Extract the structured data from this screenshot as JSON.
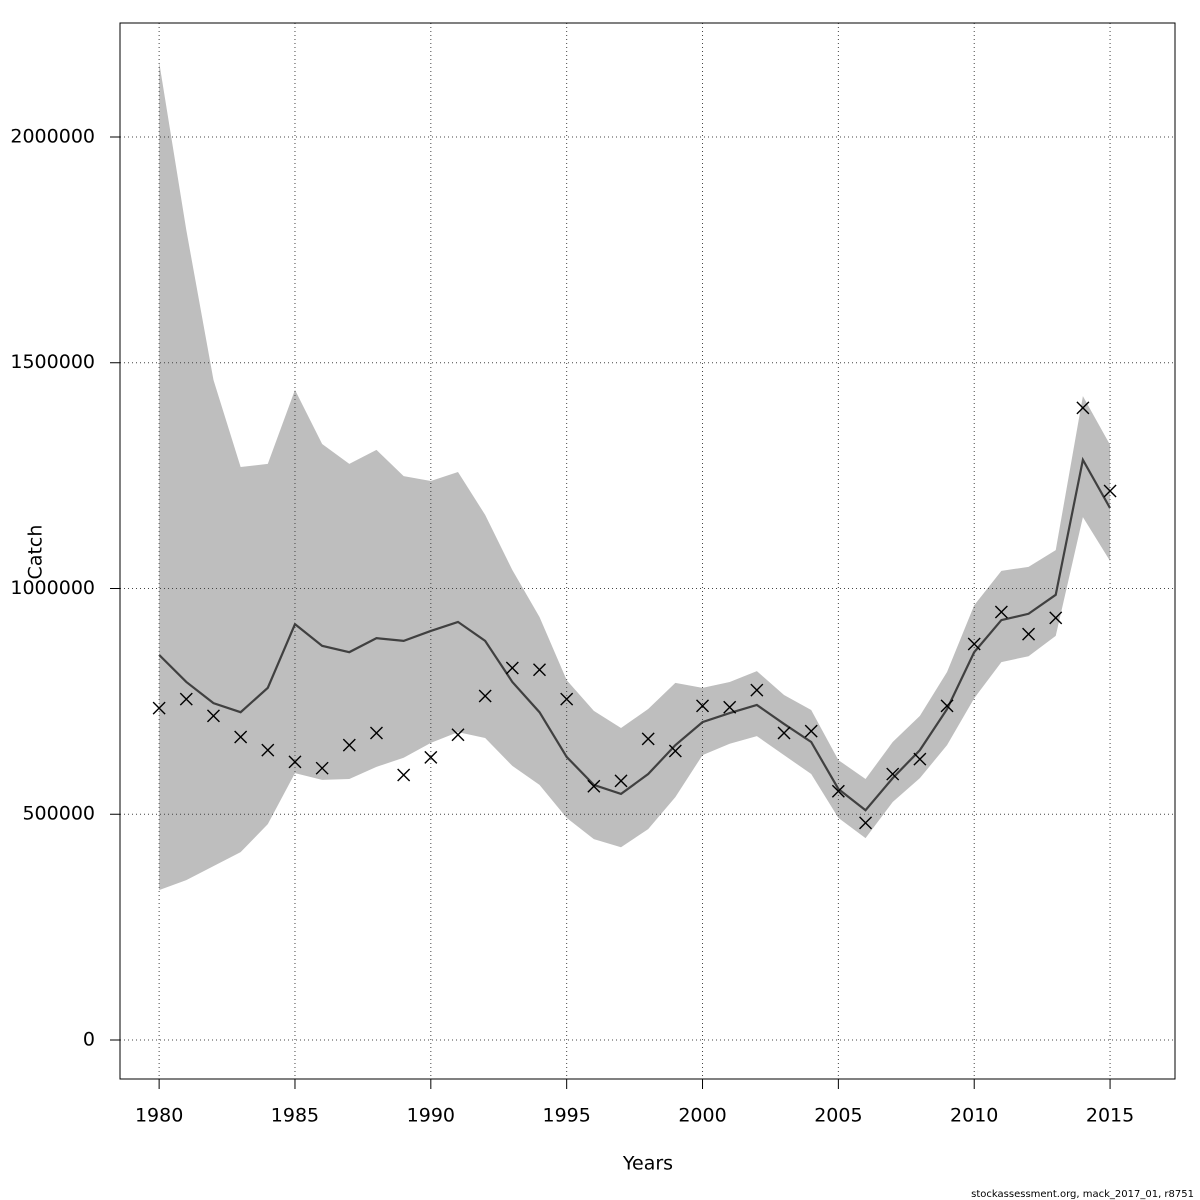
{
  "chart_data": {
    "type": "line",
    "x_label": "Years",
    "y_label": "Catch",
    "footer": "stockassessment.org, mack_2017_01, r8751",
    "x": [
      1980,
      1981,
      1982,
      1983,
      1984,
      1985,
      1986,
      1987,
      1988,
      1989,
      1990,
      1991,
      1992,
      1993,
      1994,
      1995,
      1996,
      1997,
      1998,
      1999,
      2000,
      2001,
      2002,
      2003,
      2004,
      2005,
      2006,
      2007,
      2008,
      2009,
      2010,
      2011,
      2012,
      2013,
      2014,
      2015
    ],
    "observed": [
      735000,
      755000,
      718000,
      671000,
      642000,
      616000,
      602000,
      653000,
      680000,
      587000,
      626000,
      676000,
      762000,
      824000,
      820000,
      755000,
      562000,
      574000,
      667000,
      640000,
      740000,
      737000,
      775000,
      680000,
      684000,
      551000,
      481000,
      589000,
      622000,
      740000,
      877000,
      948000,
      899000,
      935000,
      1400000,
      1216000
    ],
    "fitted": [
      853000,
      793000,
      746000,
      726000,
      780000,
      921000,
      873000,
      859000,
      890000,
      884000,
      906000,
      926000,
      884000,
      793000,
      726000,
      627000,
      565000,
      545000,
      589000,
      653000,
      704000,
      724000,
      742000,
      700000,
      660000,
      556000,
      509000,
      580000,
      642000,
      733000,
      859000,
      930000,
      944000,
      986000,
      1285000,
      1178000
    ],
    "lower": [
      332000,
      354000,
      385000,
      416000,
      478000,
      591000,
      576000,
      578000,
      605000,
      625000,
      658000,
      682000,
      669000,
      607000,
      565000,
      492000,
      445000,
      427000,
      467000,
      538000,
      631000,
      656000,
      673000,
      631000,
      589000,
      492000,
      447000,
      527000,
      580000,
      653000,
      757000,
      837000,
      850000,
      895000,
      1158000,
      1061000
    ],
    "upper": [
      2166000,
      1794000,
      1462000,
      1269000,
      1276000,
      1440000,
      1320000,
      1276000,
      1307000,
      1249000,
      1238000,
      1258000,
      1163000,
      1041000,
      937000,
      797000,
      729000,
      691000,
      733000,
      791000,
      780000,
      793000,
      817000,
      764000,
      731000,
      620000,
      578000,
      660000,
      718000,
      815000,
      963000,
      1039000,
      1048000,
      1085000,
      1426000,
      1318000
    ],
    "band_color": "#bebebe",
    "line_color": "#404040",
    "marker_color": "#000000",
    "xlim": [
      1978.56,
      2017.39
    ],
    "ylim": [
      -86400,
      2252500
    ],
    "xticks": [
      1980,
      1985,
      1990,
      1995,
      2000,
      2005,
      2010,
      2015
    ],
    "yticks": [
      0,
      500000,
      1000000,
      1500000,
      2000000
    ],
    "grid": true
  }
}
